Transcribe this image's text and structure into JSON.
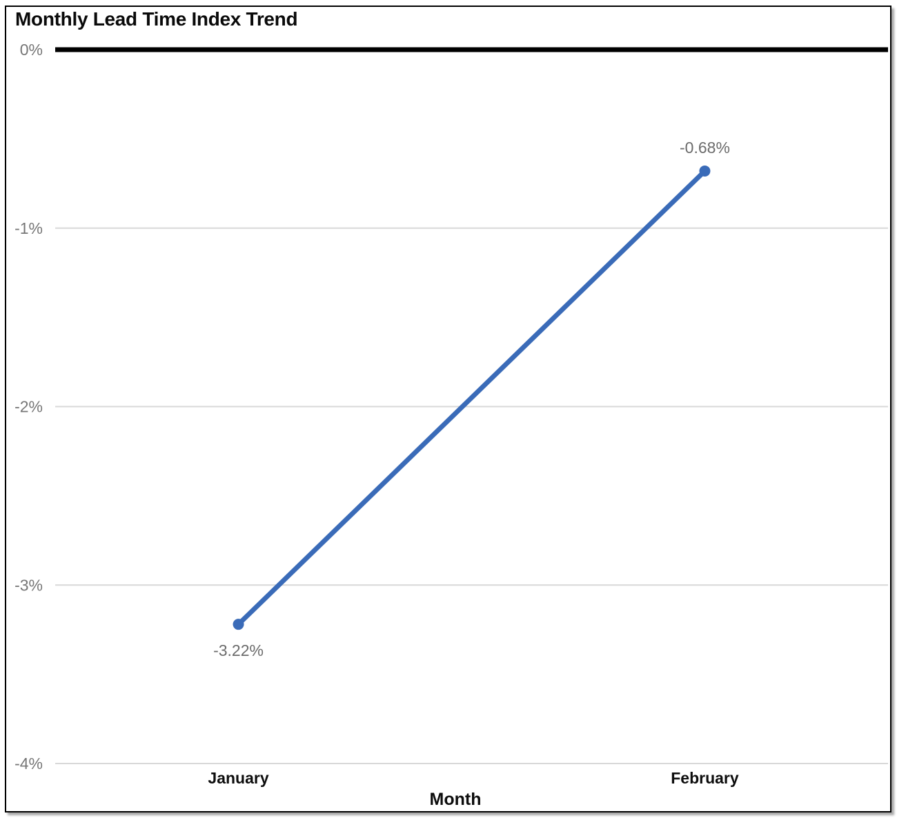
{
  "chart_data": {
    "type": "line",
    "title": "Monthly Lead Time Index Trend",
    "xlabel": "Month",
    "ylabel": "",
    "categories": [
      "January",
      "February"
    ],
    "values": [
      -3.22,
      -0.68
    ],
    "data_labels": [
      "-3.22%",
      "-0.68%"
    ],
    "data_label_placement": [
      "below",
      "above"
    ],
    "ylim": [
      -4,
      0
    ],
    "yticks": [
      {
        "value": 0,
        "label": "0%"
      },
      {
        "value": -1,
        "label": "-1%"
      },
      {
        "value": -2,
        "label": "-2%"
      },
      {
        "value": -3,
        "label": "-3%"
      },
      {
        "value": -4,
        "label": "-4%"
      }
    ],
    "grid": true,
    "legend": false,
    "zero_baseline_emphasized": true,
    "colors": {
      "line": "#3a6bb8",
      "marker": "#3a6bb8",
      "gridline": "#d8d8d8",
      "zero_line": "#000000",
      "tick_label": "#767676",
      "data_label": "#6b6b6b",
      "category_label": "#0d0d0d",
      "axis_title": "#0d0d0d",
      "title": "#0a0a0a",
      "frame_border": "#000000"
    }
  }
}
